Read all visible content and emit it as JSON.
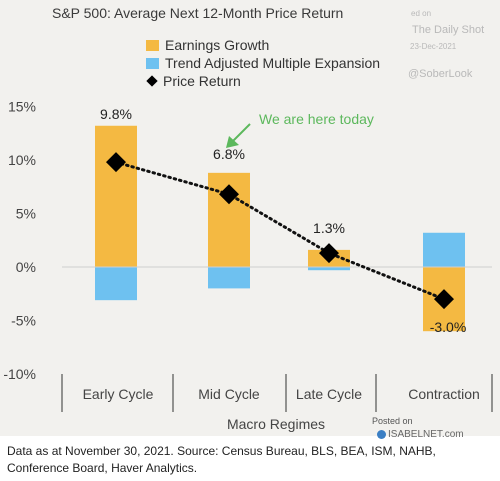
{
  "chart_data": {
    "type": "bar",
    "title": "S&P 500: Average Next 12-Month Price Return",
    "xlabel": "Macro Regimes",
    "ylabel": "",
    "categories": [
      "Early Cycle",
      "Mid Cycle",
      "Late Cycle",
      "Contraction"
    ],
    "series": [
      {
        "name": "Earnings Growth",
        "kind": "bar",
        "color": "#f4b942",
        "values": [
          13.2,
          8.8,
          1.6,
          -6.0
        ]
      },
      {
        "name": "Trend Adjusted Multiple Expansion",
        "kind": "bar",
        "color": "#6ec1f0",
        "values": [
          -3.1,
          -2.0,
          -0.3,
          3.2
        ]
      },
      {
        "name": "Price Return",
        "kind": "line",
        "marker": "diamond",
        "color": "#000000",
        "values": [
          9.8,
          6.8,
          1.3,
          -3.0
        ]
      }
    ],
    "data_labels": [
      "9.8%",
      "6.8%",
      "1.3%",
      "-3.0%"
    ],
    "yticks": [
      "15%",
      "10%",
      "5%",
      "0%",
      "-5%",
      "-10%"
    ],
    "ytick_values": [
      15,
      10,
      5,
      0,
      -5,
      -10
    ],
    "ylim": [
      -10,
      15
    ],
    "grid": false,
    "legend": "top-center",
    "annotation": "We are here today"
  },
  "watermark": {
    "line1": "ed on",
    "line2": "The Daily Shot",
    "line3": "23-Dec-2021",
    "line4": "@SoberLook"
  },
  "credit": {
    "posted": "Posted on",
    "site": "ISABELNET.com"
  },
  "footer": "Data as at November 30, 2021. Source: Census Bureau, BLS, BEA, ISM, NAHB, Conference Board, Haver Analytics."
}
